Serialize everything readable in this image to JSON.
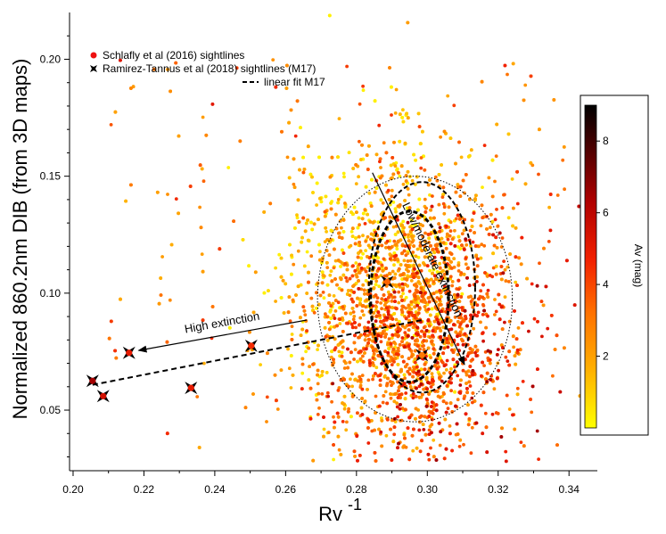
{
  "chart_data": {
    "type": "scatter",
    "xlabel": "Rv",
    "xlabel_superscript": "-1",
    "ylabel": "Normalized 860.2nm DIB (from 3D maps)",
    "xlim": [
      0.199,
      0.348
    ],
    "ylim": [
      0.026,
      0.22
    ],
    "x_ticks": [
      {
        "value": 0.2,
        "label": "0.20"
      },
      {
        "value": 0.22,
        "label": "0.22"
      },
      {
        "value": 0.24,
        "label": "0.24"
      },
      {
        "value": 0.26,
        "label": "0.26"
      },
      {
        "value": 0.28,
        "label": "0.28"
      },
      {
        "value": 0.3,
        "label": "0.30"
      },
      {
        "value": 0.32,
        "label": "0.32"
      },
      {
        "value": 0.34,
        "label": "0.34"
      }
    ],
    "y_ticks": [
      {
        "value": 0.05,
        "label": "0.05"
      },
      {
        "value": 0.1,
        "label": "0.10"
      },
      {
        "value": 0.15,
        "label": "0.15"
      },
      {
        "value": 0.2,
        "label": "0.20"
      }
    ],
    "grid": false,
    "legend": {
      "placement": "top-left",
      "entries": [
        {
          "label": "Schlafly et al (2016) sightlines",
          "marker": "circle",
          "color": "#ee1111"
        },
        {
          "label": "Ramirez-Tannus et al (2018) sightlines (M17)",
          "marker": "star",
          "color": "#000000"
        },
        {
          "label": "linear fit M17",
          "marker": "dashed-line",
          "color": "#000000"
        }
      ]
    },
    "colorbar": {
      "label": "Av (mag)",
      "range": [
        0,
        9
      ],
      "ticks": [
        2,
        4,
        6,
        8
      ],
      "colors": [
        "#ffff00",
        "#ffb000",
        "#ff7000",
        "#f22000",
        "#b00000",
        "#500000",
        "#000000"
      ]
    },
    "series": [
      {
        "name": "Schlafly et al (2016) sightlines",
        "kind": "cloud",
        "n_points": 5200,
        "center": {
          "x": 0.294,
          "y": 0.093
        },
        "spread": {
          "x": 0.016,
          "y": 0.032
        },
        "av_center": 2.6
      },
      {
        "name": "Ramirez-Tannus et al (2018) sightlines (M17)",
        "points": [
          {
            "x": 0.2055,
            "y": 0.0625,
            "av": 6.5
          },
          {
            "x": 0.2085,
            "y": 0.056,
            "av": 5.5
          },
          {
            "x": 0.2158,
            "y": 0.0745,
            "av": 5.0
          },
          {
            "x": 0.2333,
            "y": 0.0595,
            "av": 5.0
          },
          {
            "x": 0.2503,
            "y": 0.0775,
            "av": 4.5
          },
          {
            "x": 0.2887,
            "y": 0.1048,
            "av": 3.5
          },
          {
            "x": 0.2985,
            "y": 0.0735,
            "av": 3.0
          }
        ]
      },
      {
        "name": "linear fit M17",
        "line": [
          {
            "x": 0.2055,
            "y": 0.0608
          },
          {
            "x": 0.2985,
            "y": 0.0885
          }
        ]
      }
    ],
    "contours": [
      {
        "style": "dotted",
        "cx": 0.2965,
        "cy": 0.0975,
        "rx": 0.0275,
        "ry": 0.0525
      },
      {
        "style": "dashed",
        "cx": 0.2985,
        "cy": 0.1025,
        "rx": 0.015,
        "ry": 0.045
      },
      {
        "style": "dashed-bold",
        "cx": 0.295,
        "cy": 0.0985,
        "rx": 0.011,
        "ry": 0.0365
      }
    ],
    "annotations": [
      {
        "text": "High extinction",
        "arrow_from": {
          "x": 0.266,
          "y": 0.0885
        },
        "arrow_to": {
          "x": 0.2185,
          "y": 0.0755
        }
      },
      {
        "text": "Low/moderate extinction",
        "arrow_from": {
          "x": 0.2845,
          "y": 0.1515
        },
        "arrow_to": {
          "x": 0.3105,
          "y": 0.0695
        }
      }
    ]
  }
}
